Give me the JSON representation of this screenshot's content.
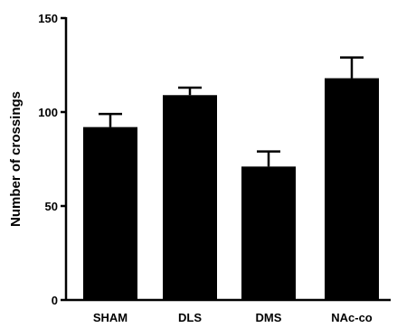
{
  "chart_data": {
    "type": "bar",
    "categories": [
      "SHAM",
      "DLS",
      "DMS",
      "NAc-co"
    ],
    "values": [
      92,
      109,
      71,
      118
    ],
    "error": [
      7,
      4,
      8,
      11
    ],
    "ylabel": "Number of crossings",
    "xlabel": "",
    "ylim": [
      0,
      150
    ],
    "yticks": [
      0,
      50,
      100,
      150
    ],
    "ytick_labels": [
      "0",
      "50",
      "100",
      "150"
    ],
    "bar_color": "#000000",
    "grid": false,
    "legend": "none"
  }
}
